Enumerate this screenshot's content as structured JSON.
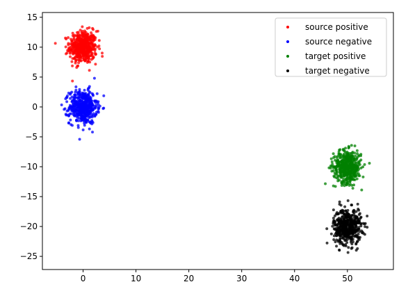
{
  "chart_data": {
    "type": "scatter",
    "title": "",
    "xlabel": "",
    "ylabel": "",
    "xlim": [
      -7.7,
      58.7
    ],
    "ylim": [
      -27.2,
      15.8
    ],
    "x_ticks": [
      0,
      10,
      20,
      30,
      40,
      50
    ],
    "y_ticks": [
      15,
      10,
      5,
      0,
      -5,
      -10,
      -15,
      -20,
      -25
    ],
    "x_tick_labels": [
      "0",
      "10",
      "20",
      "30",
      "40",
      "50"
    ],
    "y_tick_labels": [
      "15",
      "10",
      "5",
      "0",
      "−5",
      "−10",
      "−15",
      "−20",
      "−25"
    ],
    "grid": false,
    "legend_position": "top-right",
    "series": [
      {
        "name": "source positive",
        "color": "#ff0000",
        "center": [
          0,
          10
        ],
        "spread": [
          1.3,
          1.35
        ],
        "count": 500
      },
      {
        "name": "source negative",
        "color": "#0000ff",
        "center": [
          0,
          0
        ],
        "spread": [
          1.3,
          1.4
        ],
        "count": 500
      },
      {
        "name": "target positive",
        "color": "#008000",
        "center": [
          50,
          -10
        ],
        "spread": [
          1.3,
          1.35
        ],
        "count": 500
      },
      {
        "name": "target negative",
        "color": "#000000",
        "center": [
          50,
          -20
        ],
        "spread": [
          1.3,
          1.5
        ],
        "count": 500
      }
    ]
  }
}
